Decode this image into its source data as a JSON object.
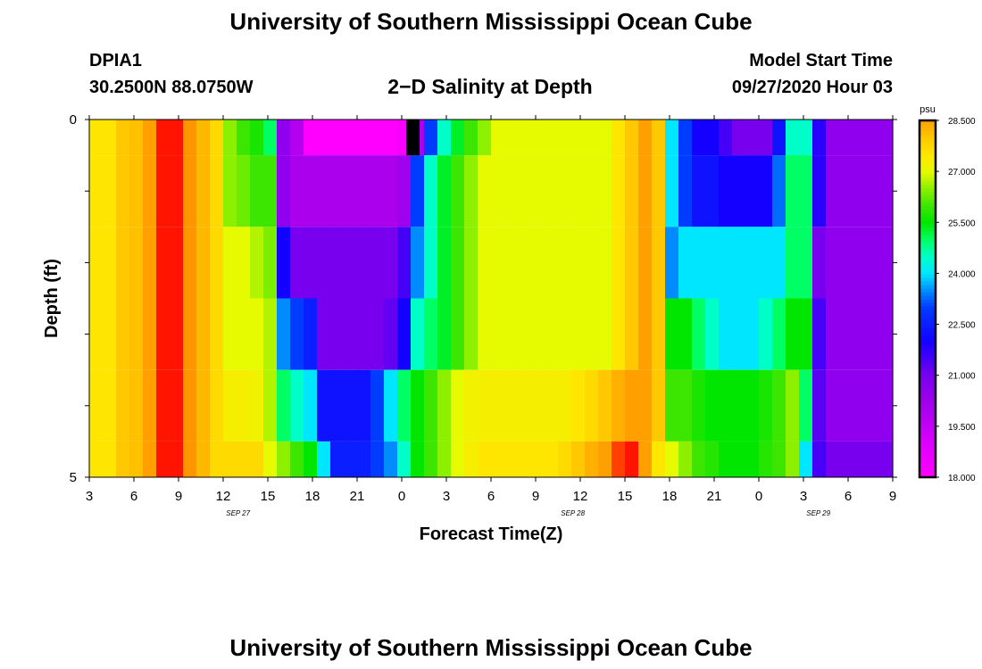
{
  "header": {
    "title": "University of Southern Mississippi Ocean Cube",
    "station_id": "DPIA1",
    "station_coords": "30.2500N 88.0750W",
    "plot_title": "2−D Salinity at Depth",
    "model_start_label": "Model Start Time",
    "model_start_value": "09/27/2020 Hour 03"
  },
  "footer": {
    "title": "University of Southern Mississippi Ocean Cube"
  },
  "chart_data": {
    "type": "heatmap",
    "title": "2-D Salinity at Depth",
    "xlabel": "Forecast Time(Z)",
    "ylabel": "Depth (ft)",
    "xlim": [
      3,
      57
    ],
    "ylim": [
      0,
      5
    ],
    "x_ticks": [
      3,
      6,
      9,
      12,
      15,
      18,
      21,
      24,
      27,
      30,
      33,
      36,
      39,
      42,
      45,
      48,
      51,
      54,
      57
    ],
    "x_tick_labels": [
      "3",
      "6",
      "9",
      "12",
      "15",
      "18",
      "21",
      "0",
      "3",
      "6",
      "9",
      "12",
      "15",
      "18",
      "21",
      "0",
      "3",
      "6",
      "9"
    ],
    "date_labels": [
      {
        "text": "SEP 27",
        "hour": 13
      },
      {
        "text": "SEP 28",
        "hour": 35.5
      },
      {
        "text": "SEP 29",
        "hour": 52
      }
    ],
    "y_ticks": [
      0,
      1,
      2,
      3,
      4,
      5
    ],
    "y_tick_labels": [
      "0",
      "",
      "",
      "",
      "",
      "5"
    ],
    "colorbar": {
      "unit": "psu",
      "min": 18.0,
      "max": 28.5,
      "tick_values": [
        28.5,
        27.0,
        25.5,
        24.0,
        22.5,
        21.0,
        19.5,
        18.0
      ],
      "tick_labels": [
        "28.500",
        "27.000",
        "25.500",
        "24.000",
        "22.500",
        "21.000",
        "19.500",
        "18.000"
      ]
    },
    "layers": [
      {
        "depth_top": 0,
        "depth_bottom": 0.5,
        "values": [
          27.5,
          27.5,
          28.0,
          28.1,
          28.5,
          30.0,
          30.0,
          28.6,
          28.2,
          27.7,
          26.5,
          26.0,
          25.7,
          25.0,
          20.5,
          19.8,
          18.0,
          18.0,
          18.0,
          18.0,
          18.0,
          18.0,
          18.0,
          18.2,
          20.0,
          23.0,
          24.5,
          25.3,
          26.0,
          26.5,
          27.0,
          27.0,
          27.0,
          27.0,
          27.0,
          27.0,
          27.0,
          27.0,
          27.0,
          27.5,
          28.0,
          28.5,
          28.0,
          24.0,
          23.0,
          22.0,
          22.0,
          21.5,
          21.0,
          21.0,
          21.0,
          22.3,
          24.5,
          24.5,
          21.8,
          20.5,
          20.5,
          20.5,
          20.5,
          20.5
        ]
      },
      {
        "depth_top": 0.5,
        "depth_bottom": 1.5,
        "values": [
          27.5,
          27.5,
          28.0,
          28.1,
          28.5,
          30.0,
          30.0,
          28.6,
          28.2,
          27.7,
          26.5,
          26.3,
          26.0,
          26.0,
          20.5,
          20.0,
          20.0,
          20.0,
          20.0,
          20.0,
          20.0,
          20.0,
          20.0,
          20.2,
          23.0,
          24.5,
          25.3,
          26.0,
          26.5,
          27.0,
          27.0,
          27.0,
          27.0,
          27.0,
          27.0,
          27.0,
          27.0,
          27.0,
          27.0,
          27.5,
          28.0,
          28.5,
          28.0,
          24.0,
          23.0,
          22.3,
          22.3,
          22.0,
          22.0,
          22.0,
          22.0,
          23.3,
          25.0,
          25.0,
          21.8,
          20.5,
          20.5,
          20.5,
          20.5,
          20.5
        ]
      },
      {
        "depth_top": 1.5,
        "depth_bottom": 2.5,
        "values": [
          27.5,
          27.5,
          28.0,
          28.1,
          28.5,
          30.0,
          30.0,
          28.6,
          28.2,
          27.7,
          27.0,
          27.0,
          26.7,
          26.4,
          22.0,
          21.0,
          21.0,
          21.0,
          21.0,
          21.0,
          21.0,
          21.0,
          21.0,
          21.5,
          23.5,
          24.5,
          25.3,
          26.0,
          26.5,
          27.0,
          27.0,
          27.0,
          27.0,
          27.0,
          27.0,
          27.0,
          27.0,
          27.0,
          27.0,
          27.5,
          28.0,
          28.5,
          28.0,
          23.5,
          24.0,
          24.0,
          24.0,
          24.0,
          24.0,
          24.0,
          24.0,
          24.0,
          25.0,
          25.0,
          21.0,
          20.5,
          20.5,
          20.5,
          20.5,
          20.5
        ]
      },
      {
        "depth_top": 2.5,
        "depth_bottom": 3.5,
        "values": [
          27.5,
          27.5,
          28.0,
          28.1,
          28.5,
          30.0,
          30.0,
          28.6,
          28.2,
          27.7,
          27.0,
          27.0,
          27.0,
          26.7,
          23.5,
          23.0,
          22.5,
          21.0,
          21.0,
          21.0,
          21.0,
          21.0,
          21.2,
          22.0,
          24.5,
          25.0,
          25.3,
          26.0,
          26.5,
          27.0,
          27.0,
          27.0,
          27.0,
          27.0,
          27.0,
          27.0,
          27.0,
          27.0,
          27.0,
          27.5,
          28.0,
          28.5,
          28.0,
          25.5,
          25.5,
          25.0,
          24.5,
          24.0,
          24.0,
          24.0,
          24.5,
          25.0,
          25.5,
          25.5,
          21.5,
          20.5,
          20.5,
          20.5,
          20.5,
          20.5
        ]
      },
      {
        "depth_top": 3.5,
        "depth_bottom": 4.5,
        "values": [
          27.5,
          27.5,
          28.0,
          28.1,
          28.5,
          30.0,
          30.0,
          28.6,
          28.2,
          27.7,
          27.3,
          27.3,
          27.2,
          26.7,
          25.0,
          24.5,
          24.0,
          22.3,
          22.3,
          22.3,
          22.3,
          23.0,
          24.0,
          25.0,
          25.5,
          26.0,
          26.5,
          27.0,
          27.2,
          27.3,
          27.3,
          27.3,
          27.3,
          27.3,
          27.3,
          27.3,
          27.5,
          27.7,
          28.0,
          28.3,
          28.5,
          28.5,
          28.0,
          26.0,
          26.0,
          25.7,
          25.5,
          25.5,
          25.5,
          25.5,
          25.7,
          26.0,
          26.5,
          25.0,
          21.3,
          20.5,
          20.5,
          20.5,
          20.5,
          20.5
        ]
      },
      {
        "depth_top": 4.5,
        "depth_bottom": 5,
        "values": [
          27.5,
          27.5,
          28.0,
          28.1,
          28.5,
          30.0,
          30.0,
          28.6,
          28.2,
          27.7,
          27.7,
          27.7,
          27.7,
          27.0,
          26.5,
          26.0,
          25.5,
          24.0,
          22.5,
          22.5,
          22.5,
          23.0,
          23.5,
          24.5,
          25.5,
          26.0,
          26.5,
          27.0,
          27.3,
          27.5,
          27.5,
          27.5,
          27.5,
          27.5,
          27.5,
          27.7,
          28.0,
          28.3,
          28.5,
          29.5,
          30.0,
          28.5,
          27.5,
          27.0,
          26.5,
          26.0,
          25.8,
          25.5,
          25.5,
          25.5,
          25.8,
          26.0,
          26.5,
          24.0,
          21.5,
          21.0,
          21.0,
          21.0,
          21.0,
          21.0
        ]
      }
    ],
    "missing_value_marks": [
      {
        "hour_start": 24.3,
        "hour_end": 25.2,
        "depth_top": 0,
        "depth_bottom": 0.5
      }
    ]
  }
}
